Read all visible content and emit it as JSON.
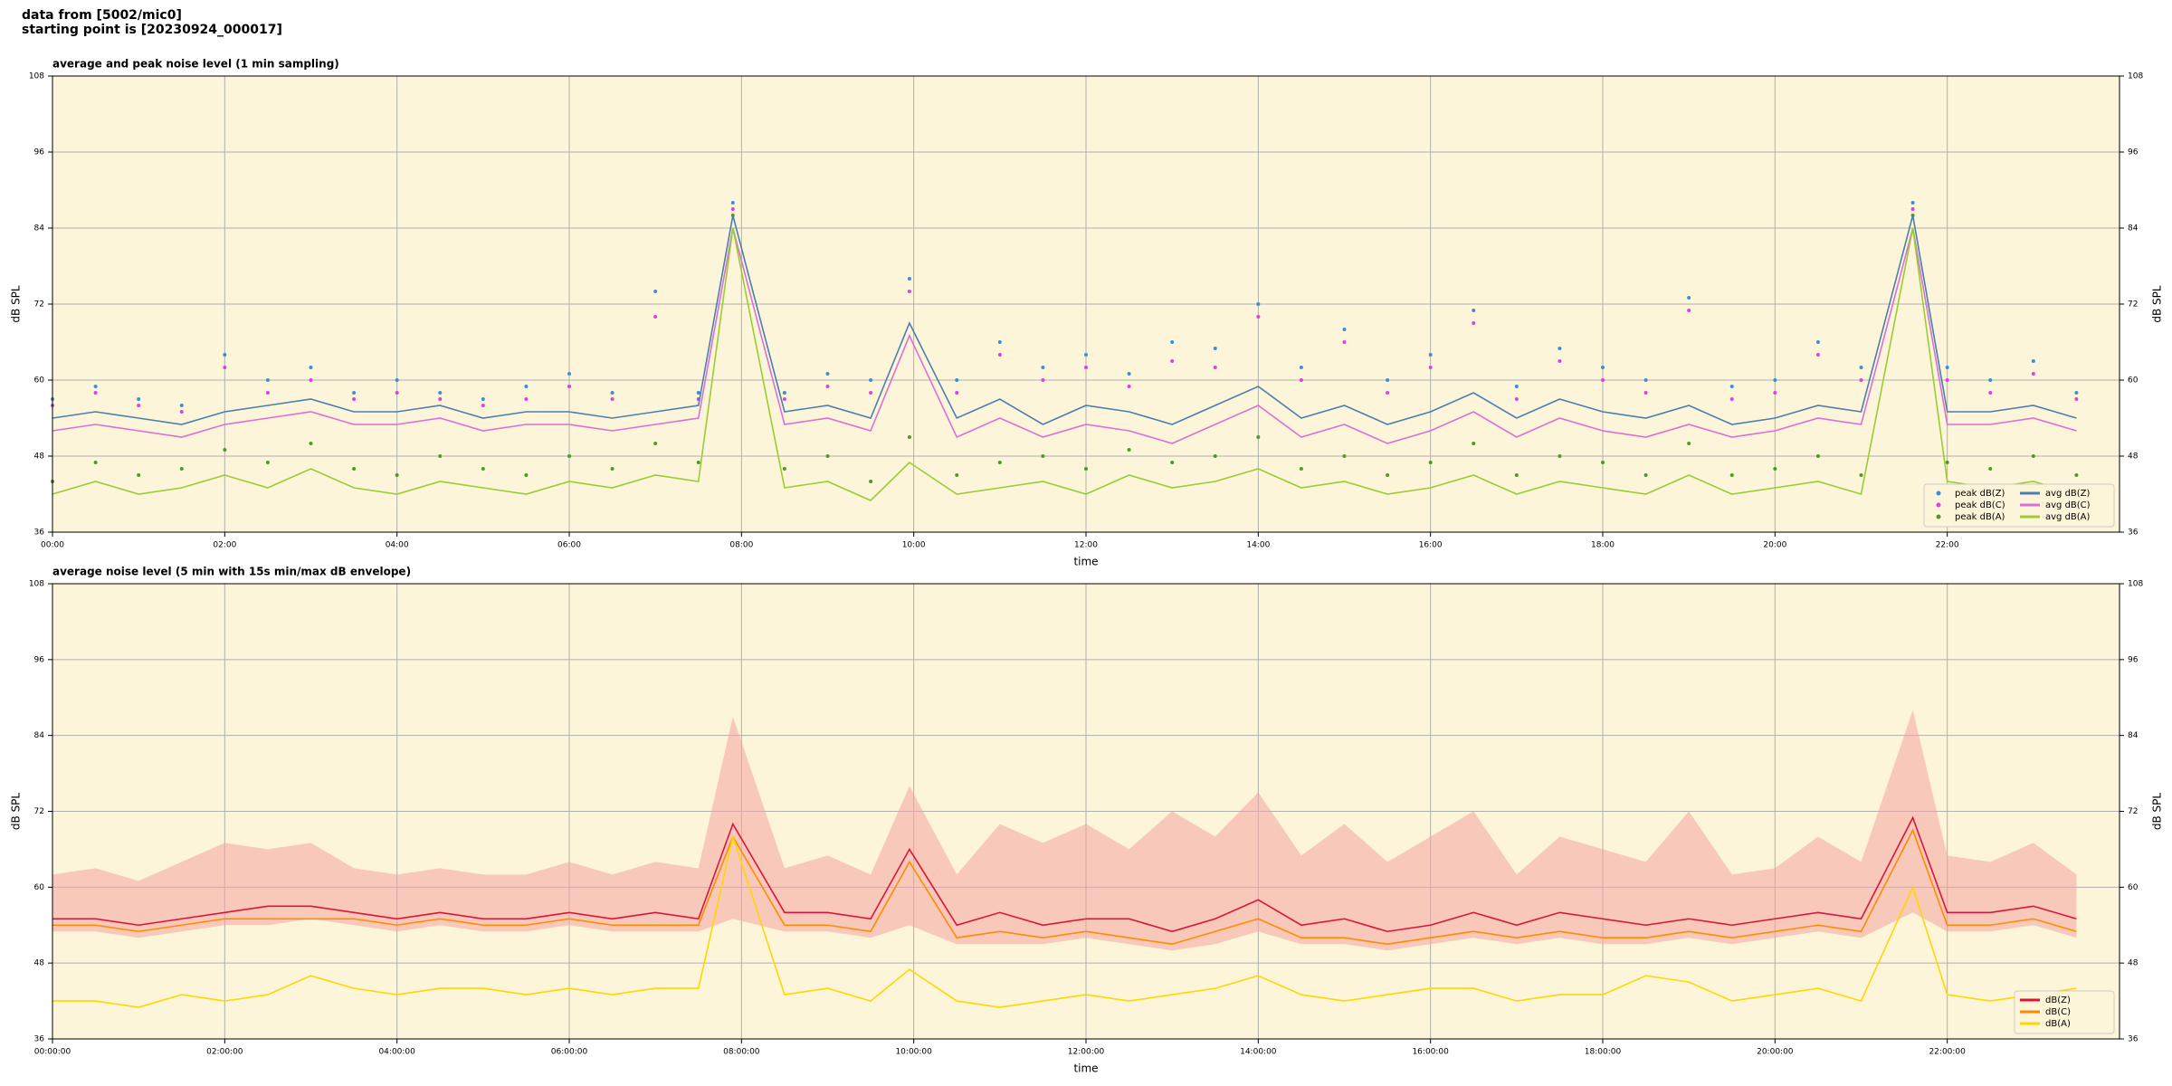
{
  "header": {
    "lines": [
      "data from [5002/mic0]",
      "starting point is [20230924_000017]"
    ]
  },
  "chart_data": [
    {
      "type": "line",
      "title": "average and peak noise level (1 min sampling)",
      "xlabel": "time",
      "ylabel": "dB SPL",
      "x": [
        0,
        0.5,
        1,
        1.5,
        2,
        2.5,
        3,
        3.5,
        4,
        4.5,
        5,
        5.5,
        6,
        6.5,
        7,
        7.5,
        7.9,
        8.5,
        9,
        9.5,
        9.95,
        10.5,
        11,
        11.5,
        12,
        12.5,
        13,
        13.5,
        14,
        14.5,
        15,
        15.5,
        16,
        16.5,
        17,
        17.5,
        18,
        18.5,
        19,
        19.5,
        20,
        20.5,
        21,
        21.6,
        22,
        22.5,
        23,
        23.5
      ],
      "xlim": [
        0,
        24
      ],
      "xticks": [
        {
          "value": 0,
          "label": "00:00"
        },
        {
          "value": 2,
          "label": "02:00"
        },
        {
          "value": 4,
          "label": "04:00"
        },
        {
          "value": 6,
          "label": "06:00"
        },
        {
          "value": 8,
          "label": "08:00"
        },
        {
          "value": 10,
          "label": "10:00"
        },
        {
          "value": 12,
          "label": "12:00"
        },
        {
          "value": 14,
          "label": "14:00"
        },
        {
          "value": 16,
          "label": "16:00"
        },
        {
          "value": 18,
          "label": "18:00"
        },
        {
          "value": 20,
          "label": "20:00"
        },
        {
          "value": 22,
          "label": "22:00"
        }
      ],
      "ylim": [
        36,
        108
      ],
      "yticks": [
        36,
        48,
        60,
        72,
        84,
        96,
        108
      ],
      "grid": true,
      "legend": "lower right",
      "legend_columns": 2,
      "series": [
        {
          "name": "peak dB(Z)",
          "kind": "scatter",
          "color": "#3b8fd8",
          "values": [
            57,
            59,
            57,
            56,
            64,
            60,
            62,
            58,
            60,
            58,
            57,
            59,
            61,
            58,
            74,
            58,
            88,
            58,
            61,
            60,
            76,
            60,
            66,
            62,
            64,
            61,
            66,
            65,
            72,
            62,
            68,
            60,
            64,
            71,
            59,
            65,
            62,
            60,
            73,
            59,
            60,
            66,
            62,
            88,
            62,
            60,
            63,
            58
          ]
        },
        {
          "name": "peak dB(C)",
          "kind": "scatter",
          "color": "#e040e0",
          "values": [
            56,
            58,
            56,
            55,
            62,
            58,
            60,
            57,
            58,
            57,
            56,
            57,
            59,
            57,
            70,
            57,
            87,
            57,
            59,
            58,
            74,
            58,
            64,
            60,
            62,
            59,
            63,
            62,
            70,
            60,
            66,
            58,
            62,
            69,
            57,
            63,
            60,
            58,
            71,
            57,
            58,
            64,
            60,
            87,
            60,
            58,
            61,
            57
          ]
        },
        {
          "name": "peak dB(A)",
          "kind": "scatter",
          "color": "#4c9a2a",
          "values": [
            44,
            47,
            45,
            46,
            49,
            47,
            50,
            46,
            45,
            48,
            46,
            45,
            48,
            46,
            50,
            47,
            86,
            46,
            48,
            44,
            51,
            45,
            47,
            48,
            46,
            49,
            47,
            48,
            51,
            46,
            48,
            45,
            47,
            50,
            45,
            48,
            47,
            45,
            50,
            45,
            46,
            48,
            45,
            86,
            47,
            46,
            48,
            45
          ]
        },
        {
          "name": "avg dB(Z)",
          "kind": "line",
          "color": "#4a7fb0",
          "values": [
            54,
            55,
            54,
            53,
            55,
            56,
            57,
            55,
            55,
            56,
            54,
            55,
            55,
            54,
            55,
            56,
            86,
            55,
            56,
            54,
            69,
            54,
            57,
            53,
            56,
            55,
            53,
            56,
            59,
            54,
            56,
            53,
            55,
            58,
            54,
            57,
            55,
            54,
            56,
            53,
            54,
            56,
            55,
            86,
            55,
            55,
            56,
            54
          ]
        },
        {
          "name": "avg dB(C)",
          "kind": "line",
          "color": "#da70d6",
          "values": [
            52,
            53,
            52,
            51,
            53,
            54,
            55,
            53,
            53,
            54,
            52,
            53,
            53,
            52,
            53,
            54,
            84,
            53,
            54,
            52,
            67,
            51,
            54,
            51,
            53,
            52,
            50,
            53,
            56,
            51,
            53,
            50,
            52,
            55,
            51,
            54,
            52,
            51,
            53,
            51,
            52,
            54,
            53,
            84,
            53,
            53,
            54,
            52
          ]
        },
        {
          "name": "avg dB(A)",
          "kind": "line",
          "color": "#9acd32",
          "values": [
            42,
            44,
            42,
            43,
            45,
            43,
            46,
            43,
            42,
            44,
            43,
            42,
            44,
            43,
            45,
            44,
            84,
            43,
            44,
            41,
            47,
            42,
            43,
            44,
            42,
            45,
            43,
            44,
            46,
            43,
            44,
            42,
            43,
            45,
            42,
            44,
            43,
            42,
            45,
            42,
            43,
            44,
            42,
            84,
            44,
            43,
            44,
            42
          ]
        }
      ]
    },
    {
      "type": "line",
      "title": "average noise level (5 min with 15s min/max dB envelope)",
      "xlabel": "time",
      "ylabel": "dB SPL",
      "x": [
        0,
        0.5,
        1,
        1.5,
        2,
        2.5,
        3,
        3.5,
        4,
        4.5,
        5,
        5.5,
        6,
        6.5,
        7,
        7.5,
        7.9,
        8.5,
        9,
        9.5,
        9.95,
        10.5,
        11,
        11.5,
        12,
        12.5,
        13,
        13.5,
        14,
        14.5,
        15,
        15.5,
        16,
        16.5,
        17,
        17.5,
        18,
        18.5,
        19,
        19.5,
        20,
        20.5,
        21,
        21.6,
        22,
        22.5,
        23,
        23.5
      ],
      "xlim": [
        0,
        24
      ],
      "xticks": [
        {
          "value": 0,
          "label": "00:00:00"
        },
        {
          "value": 2,
          "label": "02:00:00"
        },
        {
          "value": 4,
          "label": "04:00:00"
        },
        {
          "value": 6,
          "label": "06:00:00"
        },
        {
          "value": 8,
          "label": "08:00:00"
        },
        {
          "value": 10,
          "label": "10:00:00"
        },
        {
          "value": 12,
          "label": "12:00:00"
        },
        {
          "value": 14,
          "label": "14:00:00"
        },
        {
          "value": 16,
          "label": "16:00:00"
        },
        {
          "value": 18,
          "label": "18:00:00"
        },
        {
          "value": 20,
          "label": "20:00:00"
        },
        {
          "value": 22,
          "label": "22:00:00"
        }
      ],
      "ylim": [
        36,
        108
      ],
      "yticks": [
        36,
        48,
        60,
        72,
        84,
        96,
        108
      ],
      "grid": true,
      "legend": "lower right",
      "legend_columns": 1,
      "envelope": {
        "color": "#f4a3a0",
        "high": [
          62,
          63,
          61,
          64,
          67,
          66,
          67,
          63,
          62,
          63,
          62,
          62,
          64,
          62,
          64,
          63,
          87,
          63,
          65,
          62,
          76,
          62,
          70,
          67,
          70,
          66,
          72,
          68,
          75,
          65,
          70,
          64,
          68,
          72,
          62,
          68,
          66,
          64,
          72,
          62,
          63,
          68,
          64,
          88,
          65,
          64,
          67,
          62
        ],
        "low": [
          53,
          53,
          52,
          53,
          54,
          54,
          55,
          54,
          53,
          54,
          53,
          53,
          54,
          53,
          53,
          53,
          55,
          53,
          53,
          52,
          54,
          51,
          51,
          51,
          52,
          51,
          50,
          51,
          53,
          51,
          51,
          50,
          51,
          52,
          51,
          52,
          51,
          51,
          52,
          51,
          52,
          53,
          52,
          56,
          53,
          53,
          54,
          52
        ]
      },
      "series": [
        {
          "name": "dB(Z)",
          "kind": "line",
          "color": "#dc143c",
          "values": [
            55,
            55,
            54,
            55,
            56,
            57,
            57,
            56,
            55,
            56,
            55,
            55,
            56,
            55,
            56,
            55,
            70,
            56,
            56,
            55,
            66,
            54,
            56,
            54,
            55,
            55,
            53,
            55,
            58,
            54,
            55,
            53,
            54,
            56,
            54,
            56,
            55,
            54,
            55,
            54,
            55,
            56,
            55,
            71,
            56,
            56,
            57,
            55
          ]
        },
        {
          "name": "dB(C)",
          "kind": "line",
          "color": "#ff8c00",
          "values": [
            54,
            54,
            53,
            54,
            55,
            55,
            55,
            55,
            54,
            55,
            54,
            54,
            55,
            54,
            54,
            54,
            68,
            54,
            54,
            53,
            64,
            52,
            53,
            52,
            53,
            52,
            51,
            53,
            55,
            52,
            52,
            51,
            52,
            53,
            52,
            53,
            52,
            52,
            53,
            52,
            53,
            54,
            53,
            69,
            54,
            54,
            55,
            53
          ]
        },
        {
          "name": "dB(A)",
          "kind": "line",
          "color": "#ffd700",
          "values": [
            42,
            42,
            41,
            43,
            42,
            43,
            46,
            44,
            43,
            44,
            44,
            43,
            44,
            43,
            44,
            44,
            68,
            43,
            44,
            42,
            47,
            42,
            41,
            42,
            43,
            42,
            43,
            44,
            46,
            43,
            42,
            43,
            44,
            44,
            42,
            43,
            43,
            46,
            45,
            42,
            43,
            44,
            42,
            60,
            43,
            42,
            43,
            44
          ]
        }
      ]
    }
  ]
}
